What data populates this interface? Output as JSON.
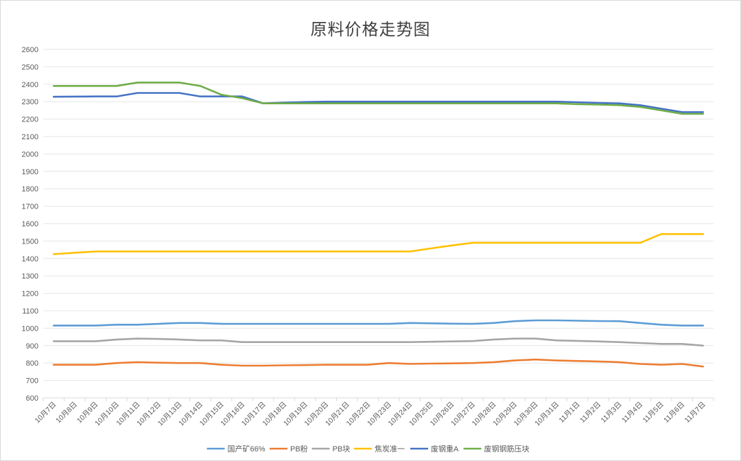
{
  "chart_data": {
    "type": "line",
    "title": "原料价格走势图",
    "xlabel": "",
    "ylabel": "",
    "ylim": [
      600,
      2600
    ],
    "yticks": [
      600,
      700,
      800,
      900,
      1000,
      1100,
      1200,
      1300,
      1400,
      1500,
      1600,
      1700,
      1800,
      1900,
      2000,
      2100,
      2200,
      2300,
      2400,
      2500,
      2600
    ],
    "grid": true,
    "legend_position": "bottom",
    "categories": [
      "10月7日",
      "10月8日",
      "10月9日",
      "10月10日",
      "10月11日",
      "10月12日",
      "10月13日",
      "10月14日",
      "10月15日",
      "10月16日",
      "10月17日",
      "10月18日",
      "10月19日",
      "10月20日",
      "10月21日",
      "10月22日",
      "10月23日",
      "10月24日",
      "10月25日",
      "10月26日",
      "10月27日",
      "10月28日",
      "10月29日",
      "10月30日",
      "10月31日",
      "11月1日",
      "11月2日",
      "11月3日",
      "11月4日",
      "11月5日",
      "11月6日",
      "11月7日"
    ],
    "series": [
      {
        "name": "国产矿66%",
        "color": "#5B9BD5",
        "values": [
          1015,
          1015,
          1015,
          1020,
          1020,
          1025,
          1030,
          1030,
          1025,
          1025,
          1025,
          1025,
          1025,
          1025,
          1025,
          1025,
          1025,
          1030,
          1028,
          1026,
          1025,
          1030,
          1040,
          1045,
          1045,
          1043,
          1041,
          1040,
          1030,
          1020,
          1015,
          1015
        ]
      },
      {
        "name": "PB粉",
        "color": "#ED7D31",
        "values": [
          790,
          790,
          790,
          800,
          805,
          802,
          800,
          800,
          790,
          785,
          785,
          787,
          788,
          790,
          790,
          790,
          800,
          795,
          797,
          798,
          800,
          805,
          815,
          820,
          815,
          812,
          809,
          805,
          795,
          790,
          795,
          780
        ]
      },
      {
        "name": "PB块",
        "color": "#A5A5A5",
        "values": [
          925,
          925,
          925,
          935,
          940,
          938,
          935,
          930,
          930,
          920,
          920,
          920,
          920,
          920,
          920,
          920,
          920,
          920,
          922,
          924,
          926,
          935,
          940,
          940,
          930,
          927,
          924,
          920,
          915,
          910,
          910,
          900
        ]
      },
      {
        "name": "焦炭准一",
        "color": "#FFC000",
        "values": [
          1425,
          1433,
          1440,
          1440,
          1440,
          1440,
          1440,
          1440,
          1440,
          1440,
          1440,
          1440,
          1440,
          1440,
          1440,
          1440,
          1440,
          1440,
          1458,
          1475,
          1490,
          1490,
          1490,
          1490,
          1490,
          1490,
          1490,
          1490,
          1490,
          1540,
          1540,
          1540
        ]
      },
      {
        "name": "废钢重A",
        "color": "#4472C4",
        "values": [
          2328,
          2329,
          2330,
          2330,
          2350,
          2350,
          2350,
          2330,
          2330,
          2330,
          2290,
          2295,
          2298,
          2300,
          2300,
          2300,
          2300,
          2300,
          2300,
          2300,
          2300,
          2300,
          2300,
          2300,
          2300,
          2297,
          2293,
          2290,
          2280,
          2260,
          2240,
          2240
        ]
      },
      {
        "name": "废钢钢筋压块",
        "color": "#70AD47",
        "values": [
          2390,
          2390,
          2390,
          2390,
          2410,
          2410,
          2410,
          2390,
          2340,
          2320,
          2290,
          2290,
          2290,
          2290,
          2290,
          2290,
          2290,
          2290,
          2290,
          2290,
          2290,
          2290,
          2290,
          2290,
          2290,
          2286,
          2283,
          2280,
          2270,
          2250,
          2230,
          2230
        ]
      }
    ]
  }
}
